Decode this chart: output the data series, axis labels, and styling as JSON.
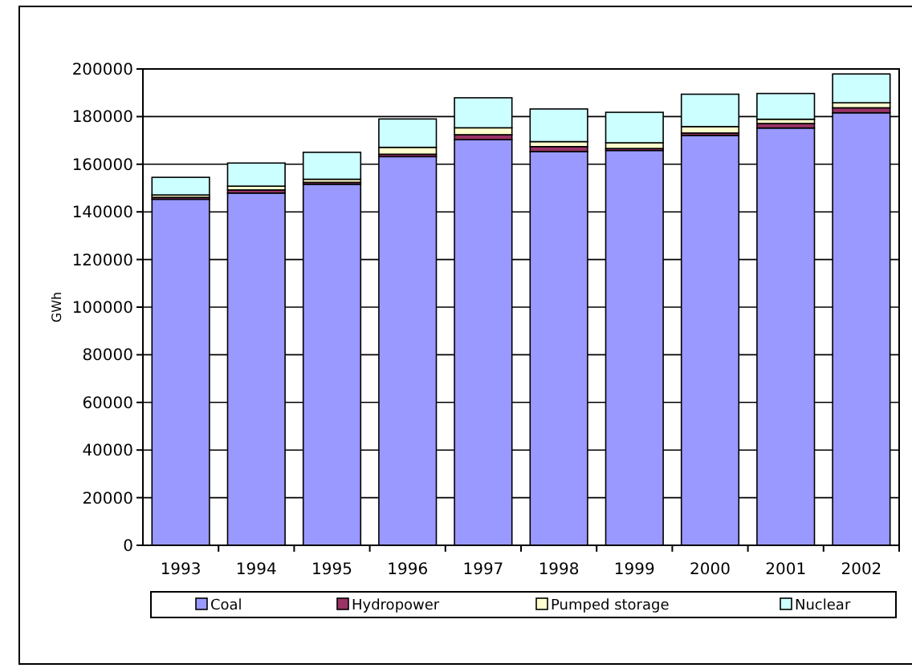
{
  "chart_data": {
    "type": "bar",
    "stacked": true,
    "ylabel": "GWh",
    "categories": [
      "1993",
      "1994",
      "1995",
      "1996",
      "1997",
      "1998",
      "1999",
      "2000",
      "2001",
      "2002"
    ],
    "series": [
      {
        "name": "Coal",
        "color": "#9999ff",
        "values": [
          145300,
          147900,
          151600,
          163200,
          170300,
          165300,
          165800,
          172100,
          175200,
          181600
        ]
      },
      {
        "name": "Hydropower",
        "color": "#993366",
        "values": [
          800,
          1300,
          800,
          1000,
          2100,
          2100,
          800,
          1000,
          1900,
          2100
        ]
      },
      {
        "name": "Pumped storage",
        "color": "#ffffcc",
        "values": [
          1000,
          1600,
          1300,
          2900,
          2900,
          2100,
          2400,
          2700,
          1800,
          2100
        ]
      },
      {
        "name": "Nuclear",
        "color": "#ccffff",
        "values": [
          7400,
          9700,
          11300,
          11900,
          12600,
          13700,
          12800,
          13600,
          10800,
          12100
        ]
      }
    ],
    "ylim": [
      0,
      200000
    ],
    "yticks": [
      0,
      20000,
      40000,
      60000,
      80000,
      100000,
      120000,
      140000,
      160000,
      180000,
      200000
    ],
    "grid": "y",
    "legend": "bottom"
  }
}
